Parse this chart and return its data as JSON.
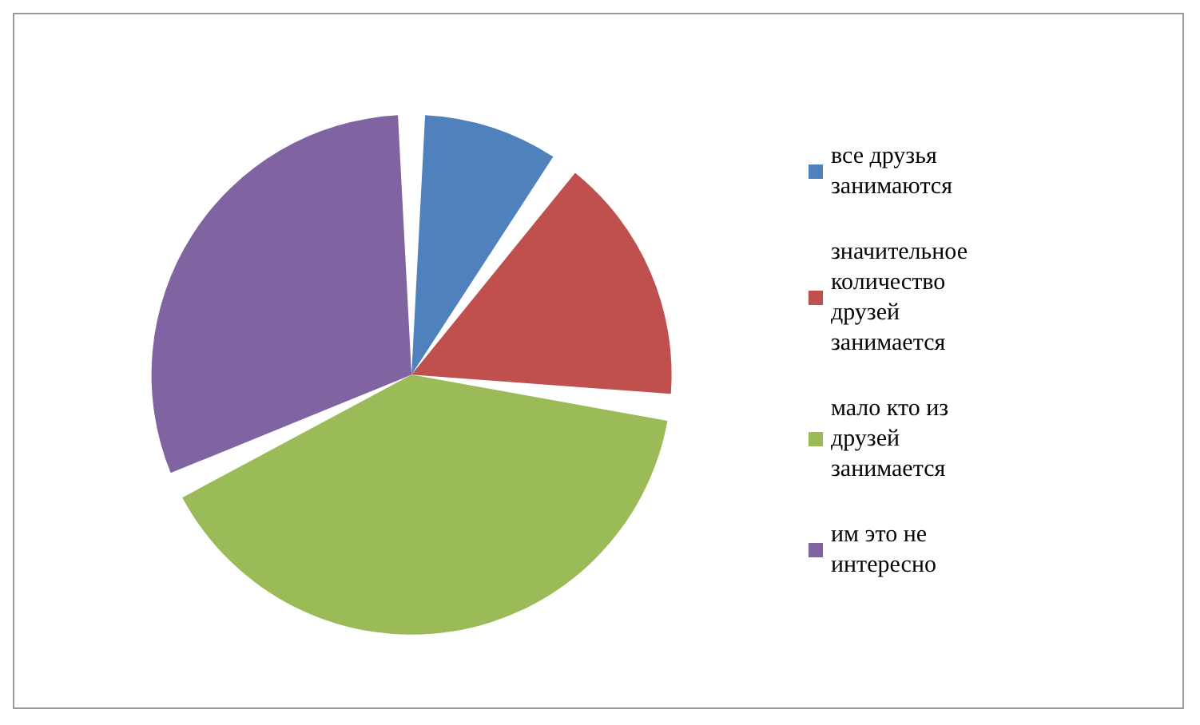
{
  "chart_data": {
    "type": "pie",
    "categories": [
      "все друзья занимаются",
      "значительное количество друзей занимается",
      "мало кто из друзей занимается",
      "им это не интересно"
    ],
    "values": [
      10,
      17,
      41,
      32
    ],
    "colors": [
      "#4f81bd",
      "#c0504d",
      "#9bbb59",
      "#8064a2"
    ],
    "legend": "right"
  }
}
